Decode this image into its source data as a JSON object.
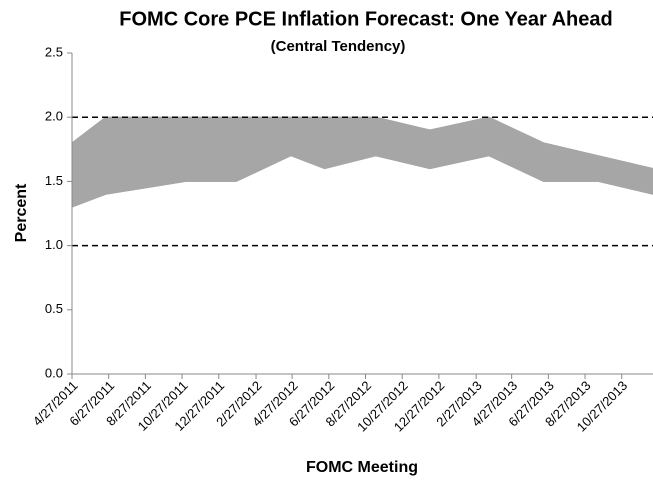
{
  "chart_data": {
    "type": "area",
    "title": "FOMC Core PCE Inflation Forecast: One Year Ahead",
    "subtitle": "(Central Tendency)",
    "x_label": "FOMC Meeting",
    "y_label": "Percent",
    "x": [
      "4/27/2011",
      "6/22/2011",
      "11/2/2011",
      "1/25/2012",
      "4/25/2012",
      "6/20/2012",
      "9/13/2012",
      "12/12/2012",
      "3/20/2013",
      "6/19/2013",
      "9/18/2013",
      "12/18/2013"
    ],
    "low": [
      1.3,
      1.4,
      1.5,
      1.5,
      1.7,
      1.6,
      1.7,
      1.6,
      1.7,
      1.5,
      1.5,
      1.4
    ],
    "high": [
      1.8,
      2.0,
      2.0,
      2.0,
      2.0,
      2.0,
      2.0,
      1.9,
      2.0,
      1.8,
      1.7,
      1.6
    ],
    "color": "#a6a6a6",
    "xlim": [
      "4/27/2011",
      "12/18/2013"
    ],
    "xticks": [
      "4/27/2011",
      "6/27/2011",
      "8/27/2011",
      "10/27/2011",
      "12/27/2011",
      "2/27/2012",
      "4/27/2012",
      "6/27/2012",
      "8/27/2012",
      "10/27/2012",
      "12/27/2012",
      "2/27/2013",
      "4/27/2013",
      "6/27/2013",
      "8/27/2013",
      "10/27/2013"
    ],
    "ylim": [
      0,
      2.5
    ],
    "yticks": [
      {
        "value": 0,
        "label": "0.0"
      },
      {
        "value": 0.5,
        "label": "0.5"
      },
      {
        "value": 1,
        "label": "1.0"
      },
      {
        "value": 1.5,
        "label": "1.5"
      },
      {
        "value": 2,
        "label": "2.0"
      },
      {
        "value": 2.5,
        "label": "2.5"
      }
    ],
    "dashed_lines": [
      1,
      2
    ]
  }
}
